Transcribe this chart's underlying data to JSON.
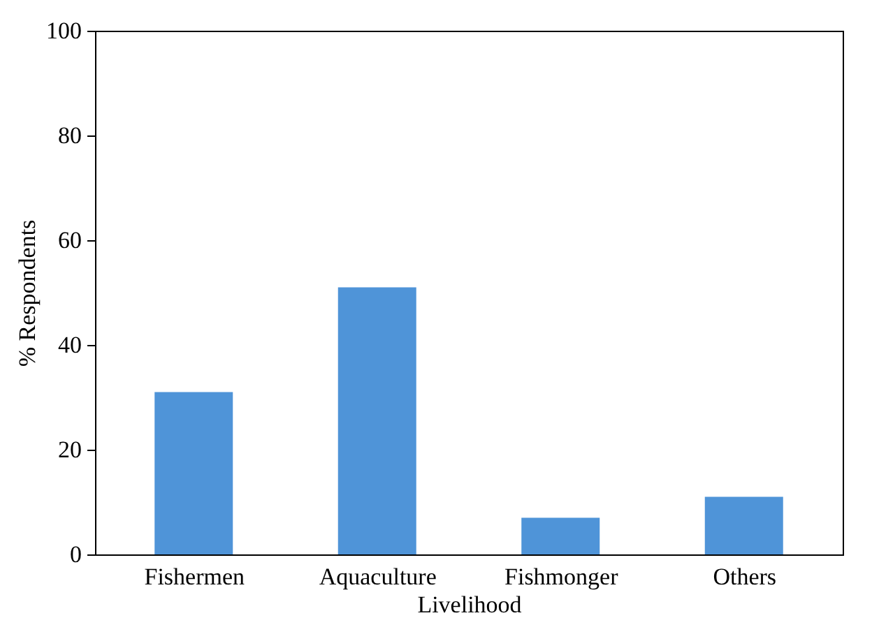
{
  "chart_data": {
    "type": "bar",
    "xlabel": "Livelihood",
    "ylabel": "% Respondents",
    "categories": [
      "Fishermen",
      "Aquaculture",
      "Fishmonger",
      "Others"
    ],
    "values": [
      31,
      51,
      7,
      11
    ],
    "color": "#4f94d8",
    "ylim": [
      0,
      100
    ],
    "yticks": [
      0,
      20,
      40,
      60,
      80,
      100
    ],
    "grid": false
  }
}
